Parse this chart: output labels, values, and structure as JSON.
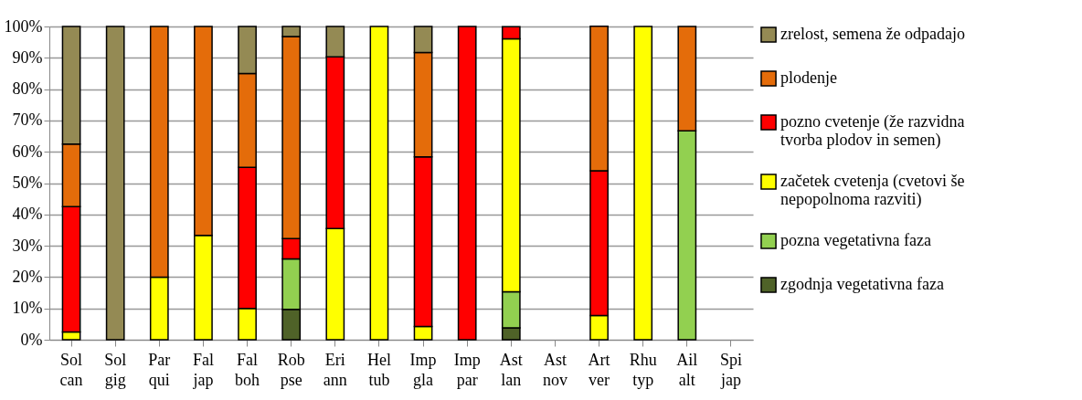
{
  "chart_data": {
    "type": "bar",
    "stacked": true,
    "categories": [
      "Sol can",
      "Sol gig",
      "Par qui",
      "Fal jap",
      "Fal boh",
      "Rob pse",
      "Eri ann",
      "Hel tub",
      "Imp gla",
      "Imp par",
      "Ast lan",
      "Ast nov",
      "Art ver",
      "Rhu typ",
      "Ail alt",
      "Spi jap"
    ],
    "series": [
      {
        "name": "zgodnja vegetativna faza",
        "color": "#4f6228",
        "values": [
          null,
          null,
          null,
          null,
          null,
          9.7,
          null,
          null,
          null,
          null,
          3.8,
          null,
          null,
          null,
          null,
          null
        ]
      },
      {
        "name": "pozna vegetativna faza",
        "color": "#92d050",
        "values": [
          null,
          null,
          null,
          null,
          null,
          16.1,
          null,
          null,
          null,
          null,
          11.5,
          null,
          null,
          null,
          66.7,
          null
        ]
      },
      {
        "name": "začetek cvetenja (cvetovi še nepopolnoma razviti)",
        "color": "#ffff00",
        "values": [
          2.5,
          null,
          20,
          33.3,
          10,
          null,
          35.5,
          100,
          4.2,
          null,
          80.8,
          null,
          7.7,
          100,
          null,
          null
        ]
      },
      {
        "name": "pozno cvetenje (že razvidna tvorba plodov in semen)",
        "color": "#ff0000",
        "values": [
          40,
          null,
          null,
          null,
          45,
          6.5,
          54.8,
          null,
          54.2,
          100,
          3.8,
          null,
          46.2,
          null,
          null,
          null
        ]
      },
      {
        "name": "plodenje",
        "color": "#e46c0a",
        "values": [
          20,
          null,
          80,
          66.7,
          30,
          64.5,
          null,
          null,
          33.3,
          null,
          null,
          null,
          46.2,
          null,
          33.3,
          null
        ]
      },
      {
        "name": "zrelost, semena že odpadajo",
        "color": "#948a54",
        "values": [
          37.5,
          100,
          null,
          null,
          15,
          3.2,
          9.7,
          null,
          8.3,
          null,
          null,
          null,
          null,
          null,
          null,
          null
        ]
      }
    ],
    "ylim": [
      0,
      100
    ],
    "yticks": [
      {
        "value": 0,
        "label": "0%"
      },
      {
        "value": 10,
        "label": "10%"
      },
      {
        "value": 20,
        "label": "20%"
      },
      {
        "value": 30,
        "label": "30%"
      },
      {
        "value": 40,
        "label": "40%"
      },
      {
        "value": 50,
        "label": "50%"
      },
      {
        "value": 60,
        "label": "60%"
      },
      {
        "value": 70,
        "label": "70%"
      },
      {
        "value": 80,
        "label": "80%"
      },
      {
        "value": 90,
        "label": "90%"
      },
      {
        "value": 100,
        "label": "100%"
      }
    ],
    "grid": "y",
    "legend": "right"
  }
}
